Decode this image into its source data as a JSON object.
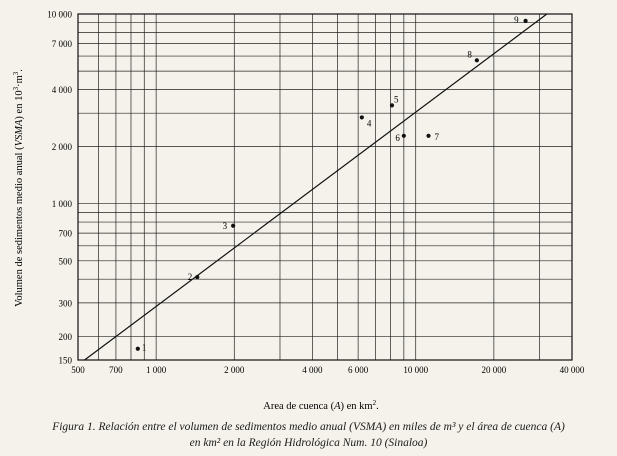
{
  "chart_data": {
    "type": "scatter",
    "xlabel_pre": "Area de cuenca (",
    "xlabel_var": "A",
    "xlabel_post": ") en km",
    "xlabel_sup": "2",
    "xlabel_end": ".",
    "ylabel_pre": "Volumen de sedimentos medio anual (",
    "ylabel_var": "VSMA",
    "ylabel_post": ") en 10",
    "ylabel_sup1": "3",
    "ylabel_mid": "·m",
    "ylabel_sup2": "3",
    "ylabel_end": ".",
    "x_scale": "log",
    "y_scale": "log",
    "xlim": [
      500,
      40000
    ],
    "ylim": [
      150,
      10000
    ],
    "x_ticks": [
      {
        "v": 500,
        "label": "500"
      },
      {
        "v": 700,
        "label": "700"
      },
      {
        "v": 1000,
        "label": "1 000"
      },
      {
        "v": 2000,
        "label": "2 000"
      },
      {
        "v": 4000,
        "label": "4 000"
      },
      {
        "v": 6000,
        "label": "6 000"
      },
      {
        "v": 10000,
        "label": "10 000"
      },
      {
        "v": 20000,
        "label": "20 000"
      },
      {
        "v": 40000,
        "label": "40 000"
      }
    ],
    "y_ticks": [
      {
        "v": 150,
        "label": "150"
      },
      {
        "v": 200,
        "label": "200"
      },
      {
        "v": 300,
        "label": "300"
      },
      {
        "v": 500,
        "label": "500"
      },
      {
        "v": 700,
        "label": "700"
      },
      {
        "v": 1000,
        "label": "1 000"
      },
      {
        "v": 2000,
        "label": "2 000"
      },
      {
        "v": 4000,
        "label": "4 000"
      },
      {
        "v": 7000,
        "label": "7 000"
      },
      {
        "v": 10000,
        "label": "10 000"
      }
    ],
    "x_grid": [
      500,
      600,
      700,
      800,
      900,
      1000,
      2000,
      3000,
      4000,
      5000,
      6000,
      7000,
      8000,
      9000,
      10000,
      20000,
      30000,
      40000
    ],
    "y_grid": [
      150,
      200,
      300,
      400,
      500,
      600,
      700,
      800,
      900,
      1000,
      2000,
      3000,
      4000,
      5000,
      6000,
      7000,
      8000,
      9000,
      10000
    ],
    "points": [
      {
        "label": "1",
        "x": 850,
        "y": 172
      },
      {
        "label": "2",
        "x": 1440,
        "y": 410
      },
      {
        "label": "3",
        "x": 1980,
        "y": 765
      },
      {
        "label": "4",
        "x": 6200,
        "y": 2850
      },
      {
        "label": "5",
        "x": 8100,
        "y": 3300
      },
      {
        "label": "6",
        "x": 9000,
        "y": 2280
      },
      {
        "label": "7",
        "x": 11200,
        "y": 2280
      },
      {
        "label": "8",
        "x": 17200,
        "y": 5700
      },
      {
        "label": "9",
        "x": 26500,
        "y": 9200
      }
    ],
    "trend_line": {
      "x": [
        530,
        32000
      ],
      "y": [
        150,
        10000
      ]
    },
    "grid": true
  },
  "caption": {
    "line1": "Figura 1. Relación entre el volumen de sedimentos medio anual (VSMA) en miles de m³ y el área de cuenca (A)",
    "line2": "en km² en la Región Hidrológica Num. 10 (Sinaloa)"
  }
}
